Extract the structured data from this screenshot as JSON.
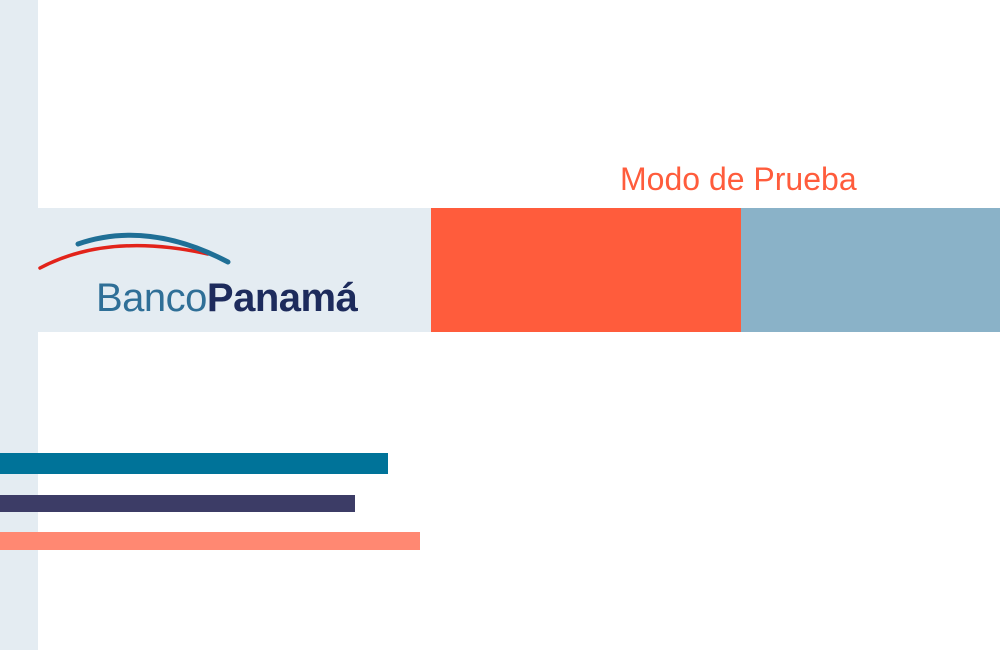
{
  "header": {
    "mode_label": "Modo de Prueba"
  },
  "brand": {
    "name_part1": "Banco",
    "name_part2": "Panamá",
    "logo_icon": "double-arc-logo-icon"
  },
  "colors": {
    "background": "#ffffff",
    "rail": "#e4ecf2",
    "accent_orange": "#ff5c3c",
    "steel_blue": "#8ab2c8",
    "teal": "#007399",
    "navy": "#3c3c66",
    "salmon": "#ff8872",
    "logo_blue": "#2f6f97",
    "logo_dark": "#1d2b5c"
  }
}
